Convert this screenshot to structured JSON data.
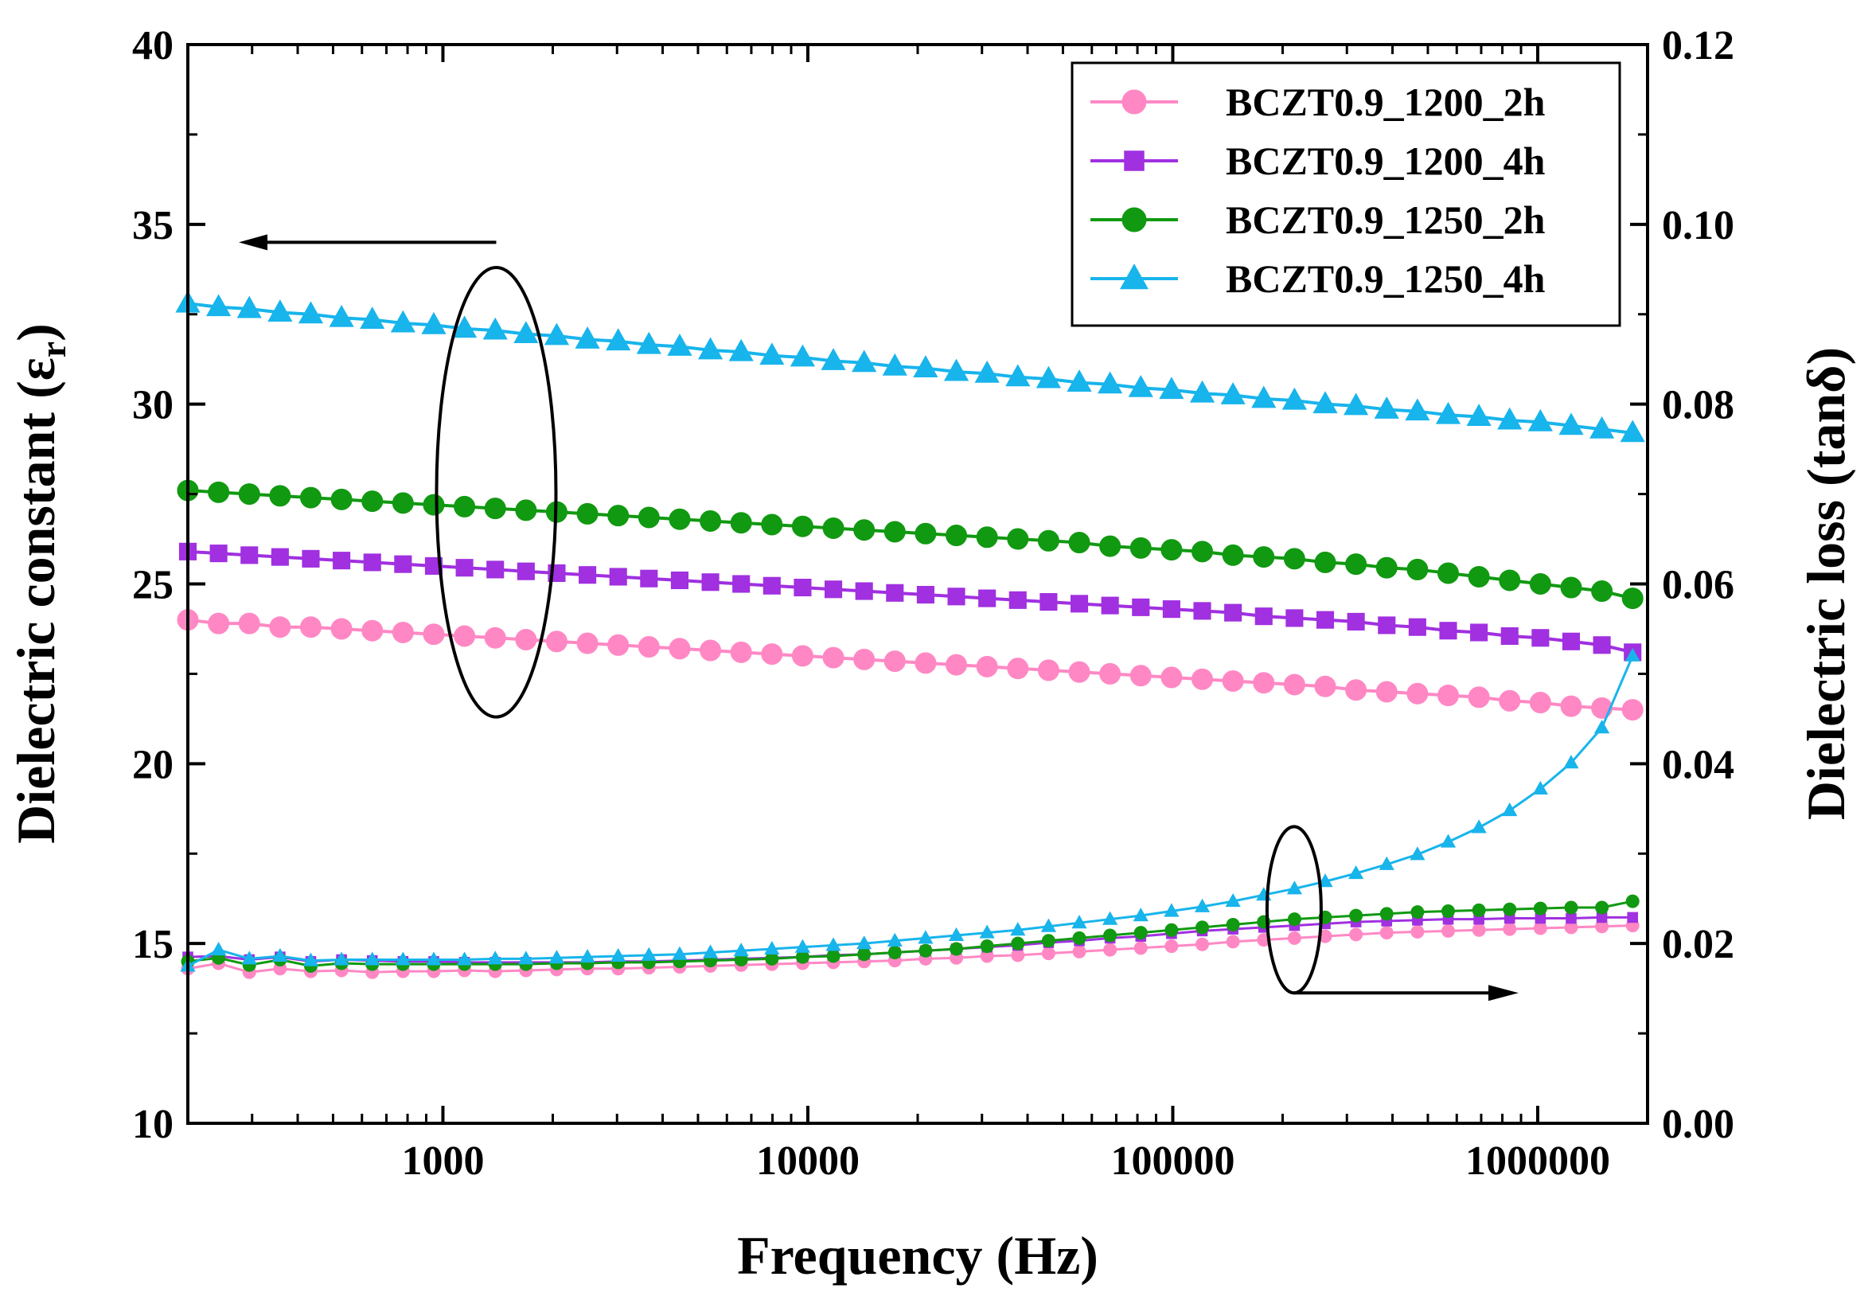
{
  "chart_data": {
    "type": "line",
    "xlabel": "Frequency (Hz)",
    "ylabel_left": "Dielectric constant (ε",
    "ylabel_left_sub": "r",
    "ylabel_left_close": ")",
    "ylabel_right": "Dielectric loss (tanδ)",
    "x_scale": "log",
    "xlim": [
      200,
      2000000
    ],
    "ylim_left": [
      10,
      40
    ],
    "ylim_right": [
      0.0,
      0.12
    ],
    "x_ticks": [
      "1000",
      "10000",
      "100000",
      "1000000"
    ],
    "y_left_ticks": [
      "10",
      "15",
      "20",
      "25",
      "30",
      "35",
      "40"
    ],
    "y_right_ticks": [
      "0.00",
      "0.02",
      "0.04",
      "0.06",
      "0.08",
      "0.10",
      "0.12"
    ],
    "legend_position": "top-right",
    "grid": false,
    "series": [
      {
        "name": "BCZT0.9_1200_2h",
        "color": "#ff88c4",
        "marker": "circle",
        "dielectric_constant": {
          "x_start": 200,
          "x_end": 1820000,
          "y": [
            24.0,
            23.9,
            23.9,
            23.8,
            23.8,
            23.75,
            23.7,
            23.65,
            23.6,
            23.55,
            23.5,
            23.45,
            23.4,
            23.35,
            23.3,
            23.25,
            23.2,
            23.15,
            23.1,
            23.05,
            23.0,
            22.95,
            22.9,
            22.85,
            22.8,
            22.75,
            22.7,
            22.65,
            22.6,
            22.55,
            22.5,
            22.45,
            22.4,
            22.35,
            22.3,
            22.25,
            22.2,
            22.15,
            22.05,
            22.0,
            21.95,
            21.9,
            21.85,
            21.75,
            21.7,
            21.6,
            21.55,
            21.5
          ]
        },
        "dielectric_loss": {
          "x_start": 200,
          "x_end": 1820000,
          "y": [
            0.0172,
            0.0178,
            0.0168,
            0.0172,
            0.0169,
            0.017,
            0.0168,
            0.0169,
            0.0169,
            0.017,
            0.0169,
            0.017,
            0.0171,
            0.0172,
            0.0172,
            0.0173,
            0.0174,
            0.0175,
            0.0176,
            0.0177,
            0.0178,
            0.0179,
            0.018,
            0.0181,
            0.0183,
            0.0184,
            0.0186,
            0.0187,
            0.0189,
            0.0191,
            0.0193,
            0.0195,
            0.0197,
            0.0199,
            0.0202,
            0.0204,
            0.0206,
            0.0208,
            0.021,
            0.0212,
            0.0213,
            0.0214,
            0.0215,
            0.0216,
            0.0217,
            0.0218,
            0.0219,
            0.022
          ]
        }
      },
      {
        "name": "BCZT0.9_1200_4h",
        "color": "#a030e0",
        "marker": "square",
        "dielectric_constant": {
          "x_start": 200,
          "x_end": 1820000,
          "y": [
            25.9,
            25.85,
            25.8,
            25.75,
            25.7,
            25.65,
            25.6,
            25.55,
            25.5,
            25.45,
            25.4,
            25.35,
            25.3,
            25.25,
            25.2,
            25.15,
            25.1,
            25.05,
            25.0,
            24.95,
            24.9,
            24.85,
            24.8,
            24.75,
            24.7,
            24.65,
            24.6,
            24.55,
            24.5,
            24.45,
            24.4,
            24.35,
            24.3,
            24.25,
            24.2,
            24.1,
            24.05,
            24.0,
            23.95,
            23.85,
            23.8,
            23.7,
            23.65,
            23.55,
            23.5,
            23.4,
            23.3,
            23.1
          ]
        },
        "dielectric_loss": {
          "x_start": 200,
          "x_end": 1820000,
          "y": [
            0.0185,
            0.0186,
            0.0182,
            0.0185,
            0.018,
            0.0182,
            0.0181,
            0.018,
            0.018,
            0.0179,
            0.0179,
            0.0179,
            0.0179,
            0.0179,
            0.018,
            0.018,
            0.0181,
            0.0182,
            0.0183,
            0.0184,
            0.0185,
            0.0187,
            0.0188,
            0.019,
            0.0192,
            0.0194,
            0.0196,
            0.0198,
            0.0201,
            0.0203,
            0.0206,
            0.0208,
            0.0211,
            0.0214,
            0.0216,
            0.0218,
            0.022,
            0.0222,
            0.0224,
            0.0225,
            0.0226,
            0.0227,
            0.0227,
            0.0228,
            0.0228,
            0.0228,
            0.0229,
            0.0229
          ]
        }
      },
      {
        "name": "BCZT0.9_1250_2h",
        "color": "#119911",
        "marker": "circle",
        "dielectric_constant": {
          "x_start": 200,
          "x_end": 1820000,
          "y": [
            27.6,
            27.55,
            27.5,
            27.45,
            27.4,
            27.35,
            27.3,
            27.25,
            27.2,
            27.15,
            27.1,
            27.05,
            27.0,
            26.95,
            26.9,
            26.85,
            26.8,
            26.75,
            26.7,
            26.65,
            26.6,
            26.55,
            26.5,
            26.45,
            26.4,
            26.35,
            26.3,
            26.25,
            26.2,
            26.15,
            26.05,
            26.0,
            25.95,
            25.9,
            25.8,
            25.75,
            25.7,
            25.6,
            25.55,
            25.45,
            25.4,
            25.3,
            25.2,
            25.1,
            25.0,
            24.9,
            24.8,
            24.6
          ]
        },
        "dielectric_loss": {
          "x_start": 200,
          "x_end": 1820000,
          "y": [
            0.018,
            0.0184,
            0.0176,
            0.0182,
            0.0175,
            0.0178,
            0.0177,
            0.0177,
            0.0177,
            0.0177,
            0.0177,
            0.0177,
            0.0178,
            0.0178,
            0.0179,
            0.0179,
            0.018,
            0.0181,
            0.0182,
            0.0183,
            0.0185,
            0.0186,
            0.0188,
            0.019,
            0.0192,
            0.0194,
            0.0197,
            0.02,
            0.0203,
            0.0206,
            0.0209,
            0.0212,
            0.0215,
            0.0218,
            0.0221,
            0.0224,
            0.0227,
            0.0229,
            0.0231,
            0.0233,
            0.0235,
            0.0236,
            0.0237,
            0.0238,
            0.0239,
            0.024,
            0.024,
            0.0247
          ]
        }
      },
      {
        "name": "BCZT0.9_1250_4h",
        "color": "#18b4ec",
        "marker": "triangle",
        "dielectric_constant": {
          "x_start": 200,
          "x_end": 1820000,
          "y": [
            32.8,
            32.7,
            32.65,
            32.55,
            32.5,
            32.4,
            32.35,
            32.25,
            32.2,
            32.1,
            32.05,
            31.95,
            31.9,
            31.8,
            31.75,
            31.65,
            31.6,
            31.5,
            31.45,
            31.35,
            31.3,
            31.2,
            31.15,
            31.05,
            31.0,
            30.9,
            30.85,
            30.75,
            30.7,
            30.6,
            30.55,
            30.45,
            30.4,
            30.3,
            30.25,
            30.15,
            30.1,
            30.0,
            29.95,
            29.85,
            29.8,
            29.7,
            29.65,
            29.55,
            29.5,
            29.4,
            29.3,
            29.2
          ]
        },
        "dielectric_loss": {
          "x_start": 200,
          "x_end": 1820000,
          "y": [
            0.0175,
            0.0193,
            0.0183,
            0.0186,
            0.0181,
            0.0182,
            0.0182,
            0.0182,
            0.0182,
            0.0182,
            0.0183,
            0.0183,
            0.0184,
            0.0185,
            0.0186,
            0.0187,
            0.0188,
            0.019,
            0.0192,
            0.0194,
            0.0196,
            0.0198,
            0.02,
            0.0203,
            0.0206,
            0.0209,
            0.0212,
            0.0215,
            0.0219,
            0.0223,
            0.0227,
            0.0231,
            0.0236,
            0.0241,
            0.0247,
            0.0254,
            0.0261,
            0.0269,
            0.0278,
            0.0288,
            0.0299,
            0.0313,
            0.0329,
            0.0348,
            0.0372,
            0.0401,
            0.044,
            0.052
          ]
        }
      }
    ]
  }
}
